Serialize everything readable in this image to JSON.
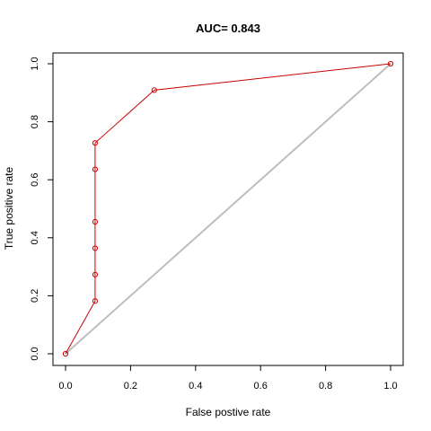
{
  "chart_data": {
    "type": "line",
    "title": "AUC= 0.843",
    "xlabel": "False postive rate",
    "ylabel": "True positive rate",
    "xlim": [
      0,
      1
    ],
    "ylim": [
      0,
      1
    ],
    "xticks": [
      "0.0",
      "0.2",
      "0.4",
      "0.6",
      "0.8",
      "1.0"
    ],
    "yticks": [
      "0.0",
      "0.2",
      "0.4",
      "0.6",
      "0.8",
      "1.0"
    ],
    "grid": false,
    "series": [
      {
        "color": "#cc0000",
        "marker": "open-circle",
        "points": [
          {
            "x": 0.0,
            "y": 0.0
          },
          {
            "x": 0.091,
            "y": 0.182
          },
          {
            "x": 0.091,
            "y": 0.273
          },
          {
            "x": 0.091,
            "y": 0.364
          },
          {
            "x": 0.091,
            "y": 0.455
          },
          {
            "x": 0.091,
            "y": 0.636
          },
          {
            "x": 0.091,
            "y": 0.727
          },
          {
            "x": 0.273,
            "y": 0.909
          },
          {
            "x": 1.0,
            "y": 1.0
          }
        ]
      }
    ],
    "reference_line": {
      "color": "#bebebe",
      "points": [
        {
          "x": 0,
          "y": 0
        },
        {
          "x": 1,
          "y": 1
        }
      ]
    }
  }
}
